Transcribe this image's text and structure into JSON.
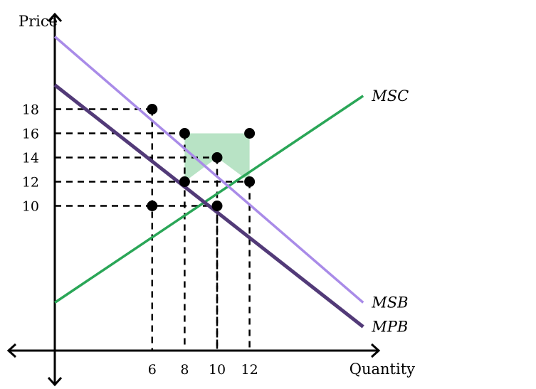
{
  "chart_data": {
    "type": "line",
    "xlabel": "Quantity",
    "ylabel": "Price",
    "xlim": [
      0,
      19
    ],
    "ylim": [
      -2,
      22
    ],
    "x_ticks": [
      "6",
      "8",
      "10",
      "12"
    ],
    "y_ticks": [
      "10",
      "12",
      "14",
      "16",
      "18"
    ],
    "series": [
      {
        "name": "MSC",
        "color": "#2aa657",
        "x": [
          0,
          19
        ],
        "y": [
          2,
          19.1
        ]
      },
      {
        "name": "MSB",
        "color": "#a98be8",
        "x": [
          0,
          19
        ],
        "y": [
          24,
          2
        ]
      },
      {
        "name": "MPB",
        "color": "#523a78",
        "x": [
          0,
          19
        ],
        "y": [
          20,
          0
        ]
      }
    ],
    "points": [
      {
        "x": 6,
        "y": 18
      },
      {
        "x": 6,
        "y": 10
      },
      {
        "x": 8,
        "y": 16
      },
      {
        "x": 8,
        "y": 12
      },
      {
        "x": 10,
        "y": 14
      },
      {
        "x": 10,
        "y": 10
      },
      {
        "x": 12,
        "y": 16
      },
      {
        "x": 12,
        "y": 12
      }
    ],
    "dashed_guides": [
      {
        "x": 6,
        "y": 18
      },
      {
        "x": 8,
        "y": 16
      },
      {
        "x": 10,
        "y": 14
      },
      {
        "x": 12,
        "y": 12
      },
      {
        "x": 10,
        "y": 10
      }
    ],
    "shaded_region": {
      "color": "#b8e3c5",
      "polygon": [
        [
          8,
          16
        ],
        [
          12,
          16
        ],
        [
          12,
          12
        ],
        [
          10,
          14
        ],
        [
          8,
          12
        ]
      ]
    }
  }
}
